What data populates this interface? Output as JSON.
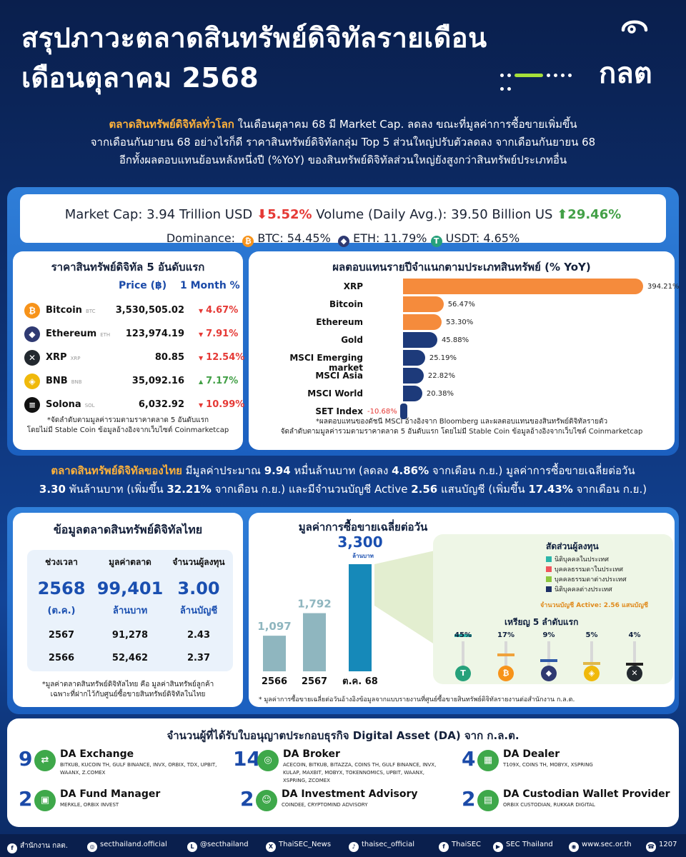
{
  "header": {
    "title_line1": "สรุปภาวะตลาดสินทรัพย์ดิจิทัลรายเดือน",
    "title_line2": "เดือนตุลาคม 2568",
    "logo_text": "กลต"
  },
  "intro": {
    "highlight": "ตลาดสินทรัพย์ดิจิทัลทั่วโลก",
    "text1": " ในเดือนตุลาคม 68 มี Market Cap. ลดลง ขณะที่มูลค่าการซื้อขายเพิ่มขึ้น",
    "text2": "จากเดือนกันยายน 68 อย่างไรก็ดี ราคาสินทรัพย์ดิจิทัลกลุ่ม Top 5 ส่วนใหญ่ปรับตัวลดลง จากเดือนกันยายน 68",
    "text3": "อีกทั้งผลตอบแทนย้อนหลังหนึ่งปี (%YoY) ของสินทรัพย์ดิจิทัลส่วนใหญ่ยังสูงกว่าสินทรัพย์ประเภทอื่น"
  },
  "market_summary": {
    "market_cap_label": "Market Cap: 3.94 Trillion USD",
    "market_cap_change": "5.52%",
    "volume_label": "Volume (Daily Avg.): 39.50 Billion US",
    "volume_change": "29.46%",
    "dominance_label": "Dominance:",
    "btc": "BTC: 54.45%",
    "eth": "ETH: 11.79%",
    "usdt": "USDT: 4.65%",
    "colors": {
      "down": "#e53935",
      "up": "#43a047"
    }
  },
  "top5": {
    "title": "ราคาสินทรัพย์ดิจิทัล 5 อันดับแรก",
    "col_price": "Price (฿)",
    "col_month": "1 Month %",
    "rows": [
      {
        "name": "Bitcoin",
        "sym": "BTC",
        "price": "3,530,505.02",
        "change": "4.67%",
        "dir": "down",
        "icon": "bitcoin-icon",
        "glyph": "₿",
        "color": "#f7931a"
      },
      {
        "name": "Ethereum",
        "sym": "ETH",
        "price": "123,974.19",
        "change": "7.91%",
        "dir": "down",
        "icon": "ethereum-icon",
        "glyph": "◆",
        "color": "#2f3a72"
      },
      {
        "name": "XRP",
        "sym": "XRP",
        "price": "80.85",
        "change": "12.54%",
        "dir": "down",
        "icon": "xrp-icon",
        "glyph": "✕",
        "color": "#23292f"
      },
      {
        "name": "BNB",
        "sym": "BNB",
        "price": "35,092.16",
        "change": "7.17%",
        "dir": "up",
        "icon": "bnb-icon",
        "glyph": "◈",
        "color": "#f0b90b"
      },
      {
        "name": "Solona",
        "sym": "SOL",
        "price": "6,032.92",
        "change": "10.99%",
        "dir": "down",
        "icon": "solana-icon",
        "glyph": "≡",
        "color": "#111111"
      }
    ],
    "note1": "*จัดลำดับตามมูลค่ารวมตามราคาตลาด 5 อันดับแรก",
    "note2": "โดยไม่มี Stable Coin ข้อมูลอ้างอิงจากเว็บไซต์ Coinmarketcap"
  },
  "yoy": {
    "title": "ผลตอบแทนรายปีจำแนกตามประเภทสินทรัพย์ (% YoY)",
    "note1": "*ผลตอบแทนของดัชนี MSCI อ้างอิงจาก Bloomberg และผลตอบแทนของสินทรัพย์ดิจิทัลรายตัว",
    "note2": "จัดลำดับตามมูลค่ารวมตามราคาตลาด 5 อันดับแรก โดยไม่มี Stable Coin ข้อมูลอ้างอิงจากเว็บไซต์ Coinmarketcap"
  },
  "chart_data": [
    {
      "type": "bar",
      "orientation": "horizontal",
      "title": "ผลตอบแทนรายปีจำแนกตามประเภทสินทรัพย์ (% YoY)",
      "categories": [
        "XRP",
        "Bitcoin",
        "Ethereum",
        "Gold",
        "MSCI Emerging market",
        "MSCI Asia",
        "MSCI World",
        "SET Index"
      ],
      "values": [
        394.21,
        56.47,
        53.3,
        45.88,
        25.19,
        22.82,
        20.38,
        -10.68
      ],
      "labels": [
        "394.21%",
        "56.47%",
        "53.30%",
        "45.88%",
        "25.19%",
        "22.82%",
        "20.38%",
        "-10.68%"
      ],
      "colors": [
        "#f58b3c",
        "#f58b3c",
        "#f58b3c",
        "#1d3a7a",
        "#1d3a7a",
        "#1d3a7a",
        "#1d3a7a",
        "#1d3a7a"
      ]
    },
    {
      "type": "bar",
      "title": "มูลค่าการซื้อขายเฉลี่ยต่อวัน",
      "categories": [
        "2566",
        "2567",
        "ต.ค. 68"
      ],
      "values": [
        1097,
        1792,
        3300
      ],
      "labels": [
        "1,097",
        "1,792",
        "3,300"
      ],
      "unit": "ล้านบาท"
    },
    {
      "type": "pie",
      "title": "สัดส่วนผู้ลงทุน",
      "categories": [
        "นิติบุคคลในประเทศ",
        "บุคคลธรรมดาในประเทศ",
        "บุคคลธรรมดาต่างประเทศ",
        "นิติบุคคลต่างประเทศ"
      ],
      "values": [
        13,
        41,
        21,
        25
      ],
      "colors": [
        "#2cb5a9",
        "#f0545c",
        "#8cc63e",
        "#1d2f66"
      ]
    },
    {
      "type": "bar",
      "title": "เหรียญ 5 ลำดับแรก",
      "categories": [
        "USDT",
        "BTC",
        "ETH",
        "BNB",
        "XRP"
      ],
      "values": [
        45,
        17,
        9,
        5,
        4
      ],
      "labels": [
        "45%",
        "17%",
        "9%",
        "5%",
        "4%"
      ]
    }
  ],
  "thai_intro": {
    "highlight": "ตลาดสินทรัพย์ดิจิทัลของไทย",
    "t1": " มีมูลค่าประมาณ ",
    "v1": "9.94",
    "t2": " หมื่นล้านบาท (ลดลง ",
    "v2": "4.86%",
    "t3": " จากเดือน ก.ย.) มูลค่าการซื้อขายเฉลี่ยต่อวัน",
    "v3": "3.30",
    "t4": " พันล้านบาท (เพิ่มขึ้น ",
    "v4": "32.21%",
    "t5": " จากเดือน ก.ย.) และมีจำนวนบัญชี Active ",
    "v5": "2.56",
    "t6": " แสนบัญชี (เพิ่มขึ้น ",
    "v6": "17.43%",
    "t7": " จากเดือน ก.ย.)"
  },
  "thai_market": {
    "title": "ข้อมูลตลาดสินทรัพย์ดิจิทัลไทย",
    "h_period": "ช่วงเวลา",
    "h_value": "มูลค่าตลาด",
    "h_investors": "จำนวนผู้ลงทุน",
    "cur_period": "2568",
    "cur_period_sub": "(ต.ค.)",
    "cur_value": "99,401",
    "cur_value_sub": "ล้านบาท",
    "cur_investors": "3.00",
    "cur_investors_sub": "ล้านบัญชี",
    "rows": [
      {
        "period": "2567",
        "value": "91,278",
        "investors": "2.43"
      },
      {
        "period": "2566",
        "value": "52,462",
        "investors": "2.37"
      }
    ],
    "note1": "*มูลค่าตลาดสินทรัพย์ดิจิทัลไทย คือ มูลค่าสินทรัพย์ลูกค้า",
    "note2": "เฉพาะที่ฝากไว้กับศูนย์ซื้อขายสินทรัพย์ดิจิทัลในไทย"
  },
  "daily_volume": {
    "title": "มูลค่าการซื้อขายเฉลี่ยต่อวัน",
    "unit": "ล้านบาท",
    "investor_title": "สัดส่วนผู้ลงทุน",
    "active_accounts": "จำนวนบัญชี Active: 2.56 แสนบัญชี",
    "top5_title": "เหรียญ 5 ลำดับแรก",
    "pie_labels": [
      "13%",
      "41%",
      "21%",
      "25%"
    ],
    "note": "* มูลค่าการซื้อขายเฉลี่ยต่อวันอ้างอิงข้อมูลจากแบบรายงานที่ศูนย์ซื้อขายสินทรัพย์ดิจิทัลรายงานต่อสำนักงาน ก.ล.ต."
  },
  "licenses": {
    "title": "จำนวนผู้ที่ได้รับใบอนุญาตประกอบธุรกิจ Digital Asset (DA) จาก ก.ล.ต.",
    "items": [
      {
        "count": "9",
        "name": "DA Exchange",
        "desc": "BITKUB, KUCOIN TH, GULF BINANCE, INVX, ORBIX, TDX, UPBIT, WAANX, Z.COMEX"
      },
      {
        "count": "14",
        "name": "DA Broker",
        "desc": "ACECOIN, BITKUB, BITAZZA, COINS TH, GULF BINANCE, INVX, KULAP, MAXBIT, MOBYX, TOKENNOMICS, UPBIT, WAANX, XSPRING, ZCOMEX"
      },
      {
        "count": "4",
        "name": "DA Dealer",
        "desc": "T109X, COINS TH, MOBYX, XSPRING"
      },
      {
        "count": "2",
        "name": "DA Fund Manager",
        "desc": "MERKLE, ORBIX INVEST"
      },
      {
        "count": "2",
        "name": "DA Investment Advisory",
        "desc": "COINDEE, CRYPTOMIND ADVISORY"
      },
      {
        "count": "2",
        "name": "DA Custodian Wallet Provider",
        "desc": "ORBIX CUSTODIAN, RUKKAR DIGITAL"
      }
    ]
  },
  "footer": {
    "items": [
      {
        "icon": "facebook-icon",
        "glyph": "f",
        "label": "สำนักงาน กลต."
      },
      {
        "icon": "instagram-icon",
        "glyph": "◎",
        "label": "secthailand.official"
      },
      {
        "icon": "line-icon",
        "glyph": "L",
        "label": "@secthailand"
      },
      {
        "icon": "x-icon",
        "glyph": "X",
        "label": "ThaiSEC_News"
      },
      {
        "icon": "tiktok-icon",
        "glyph": "♪",
        "label": "thaisec_official"
      },
      {
        "icon": "facebook-icon",
        "glyph": "f",
        "label": "ThaiSEC"
      },
      {
        "icon": "youtube-icon",
        "glyph": "▶",
        "label": "SEC Thailand"
      },
      {
        "icon": "globe-icon",
        "glyph": "◉",
        "label": "www.sec.or.th"
      },
      {
        "icon": "phone-icon",
        "glyph": "☎",
        "label": "1207"
      }
    ]
  }
}
